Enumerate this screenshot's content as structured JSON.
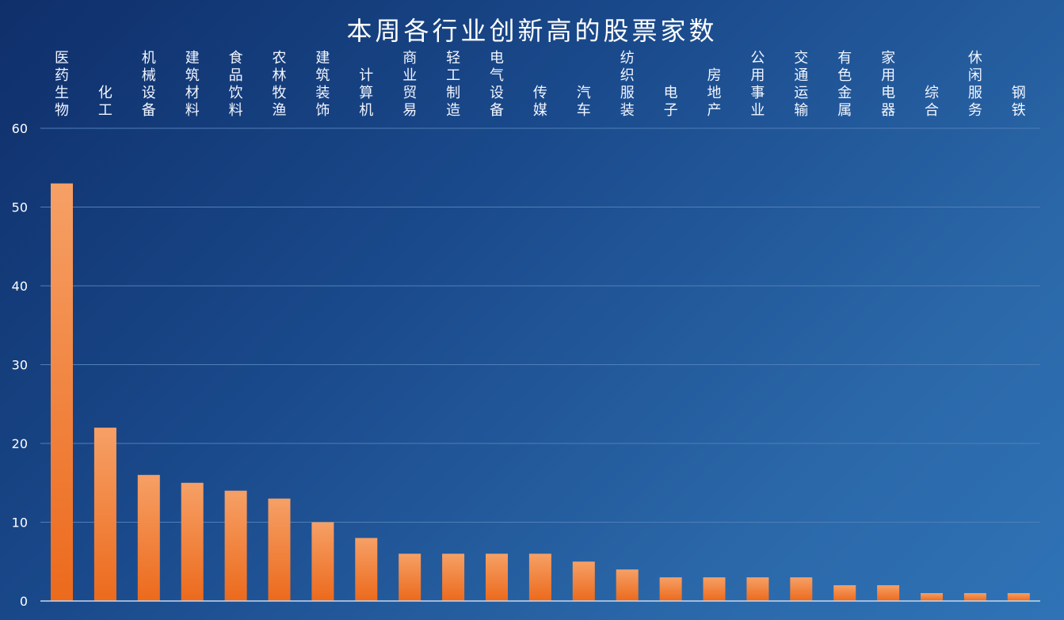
{
  "chart_data": {
    "type": "bar",
    "title": "本周各行业创新高的股票家数",
    "categories": [
      "医药生物",
      "化工",
      "机械设备",
      "建筑材料",
      "食品饮料",
      "农林牧渔",
      "建筑装饰",
      "计算机",
      "商业贸易",
      "轻工制造",
      "电气设备",
      "传媒",
      "汽车",
      "纺织服装",
      "电子",
      "房地产",
      "公用事业",
      "交通运输",
      "有色金属",
      "家用电器",
      "综合",
      "休闲服务",
      "钢铁"
    ],
    "values": [
      53,
      22,
      16,
      15,
      14,
      13,
      10,
      8,
      6,
      6,
      6,
      6,
      5,
      4,
      3,
      3,
      3,
      3,
      2,
      2,
      1,
      1,
      1
    ],
    "ylim": [
      0,
      60
    ],
    "yticks": [
      0,
      10,
      20,
      30,
      40,
      50,
      60
    ],
    "xlabel": "",
    "ylabel": "",
    "grid": true,
    "legend": "none",
    "colors": {
      "bar_top": "#f6a066",
      "bar_bottom": "#ec6a1c",
      "grid": "#4f7fb8",
      "axis": "#c9d8ee"
    }
  }
}
